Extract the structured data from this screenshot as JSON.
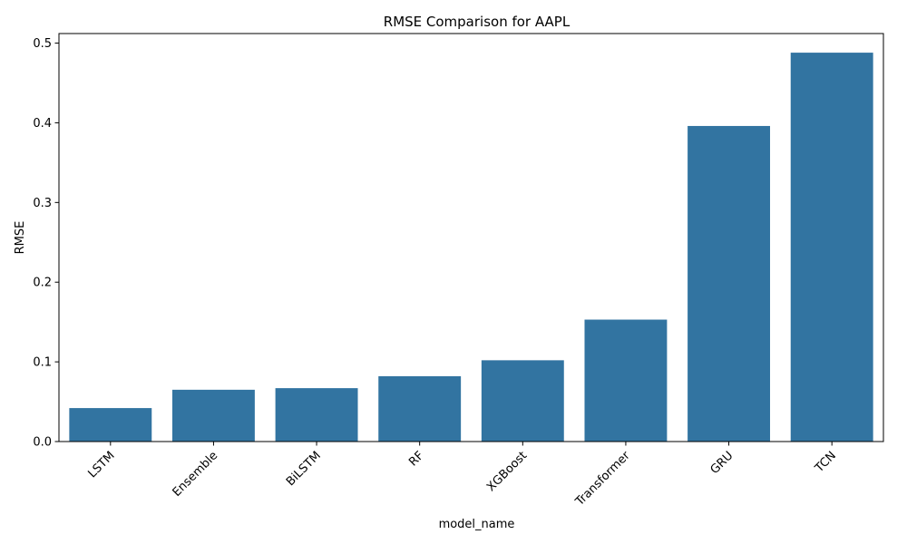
{
  "chart_data": {
    "type": "bar",
    "title": "RMSE Comparison for AAPL",
    "xlabel": "model_name",
    "ylabel": "RMSE",
    "categories": [
      "LSTM",
      "Ensemble",
      "BiLSTM",
      "RF",
      "XGBoost",
      "Transformer",
      "GRU",
      "TCN"
    ],
    "values": [
      0.042,
      0.065,
      0.067,
      0.082,
      0.102,
      0.153,
      0.396,
      0.488
    ],
    "ylim": [
      0,
      0.512
    ],
    "yticks": [
      0.0,
      0.1,
      0.2,
      0.3,
      0.4,
      0.5
    ],
    "ytick_labels": [
      "0.0",
      "0.1",
      "0.2",
      "0.3",
      "0.4",
      "0.5"
    ],
    "bar_color": "#3274a1",
    "grid": false,
    "legend": "none"
  }
}
